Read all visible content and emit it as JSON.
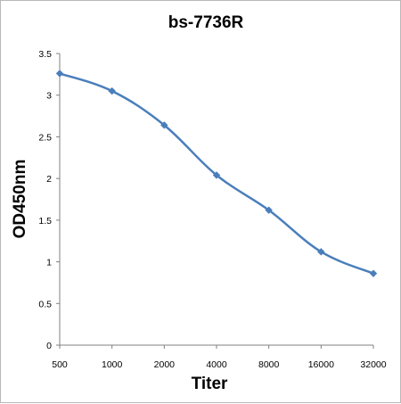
{
  "chart_data": {
    "type": "line",
    "title": "bs-7736R",
    "xlabel": "Titer",
    "ylabel": "OD450nm",
    "categories": [
      "500",
      "1000",
      "2000",
      "4000",
      "8000",
      "16000",
      "32000"
    ],
    "series": [
      {
        "values": [
          3.26,
          3.05,
          2.64,
          2.04,
          1.62,
          1.12,
          0.86
        ]
      }
    ],
    "ylim": [
      0,
      3.5
    ],
    "yticks": [
      "0",
      "0.5",
      "1",
      "1.5",
      "2",
      "2.5",
      "3",
      "3.5"
    ],
    "grid": false,
    "legend": "none",
    "colors": {
      "series": "#4a7ebb",
      "marker": "#4a7ebb",
      "axis": "#808080"
    }
  }
}
